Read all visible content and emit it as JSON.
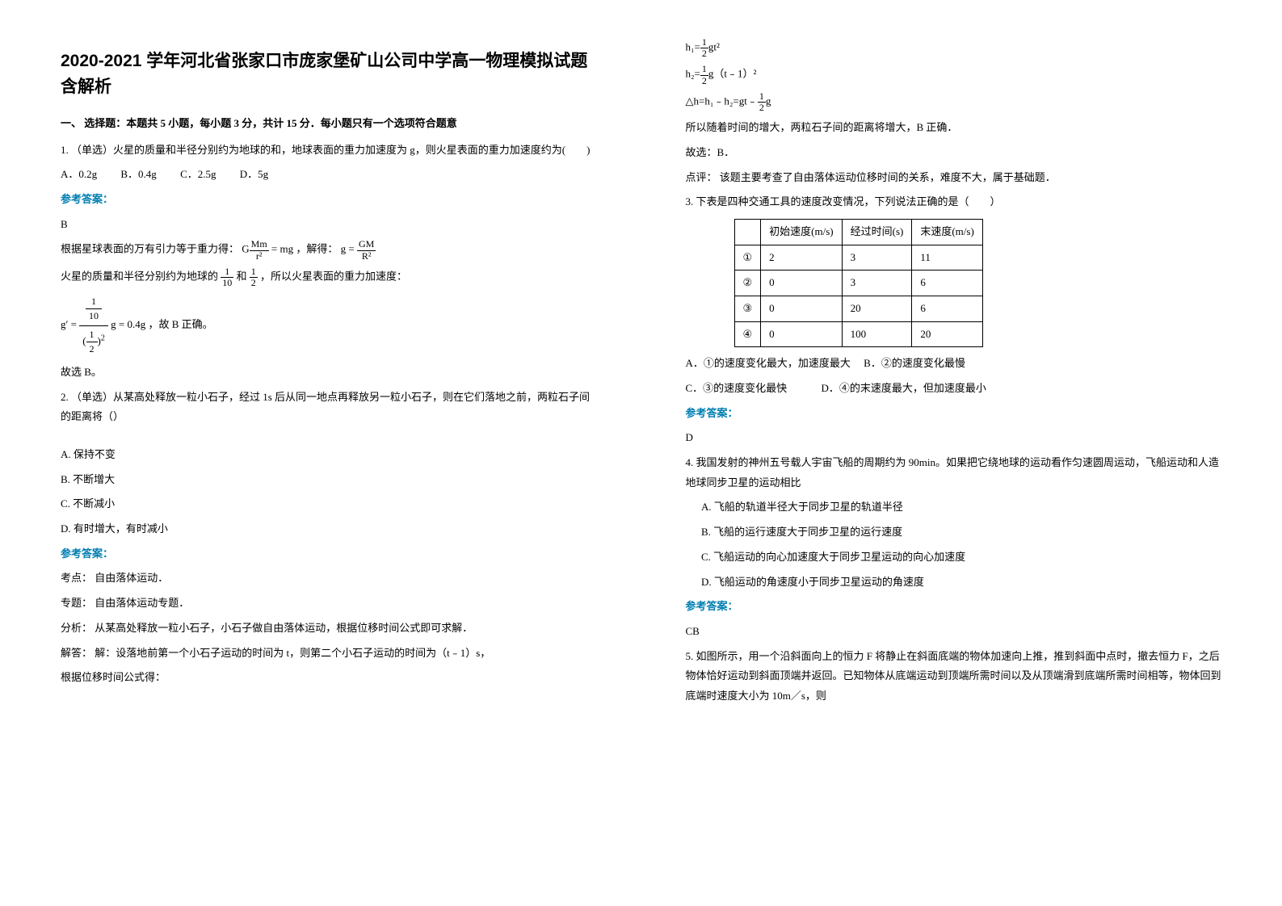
{
  "title": "2020-2021 学年河北省张家口市庞家堡矿山公司中学高一物理模拟试题含解析",
  "section1": {
    "head": "一、 选择题：本题共 5 小题，每小题 3 分，共计 15 分．每小题只有一个选项符合题意"
  },
  "q1": {
    "stem": "1. （单选）火星的质量和半径分别约为地球的和，地球表面的重力加速度为 g，则火星表面的重力加速度约为(　　)",
    "optA": "A．0.2g",
    "optB": "B．0.4g",
    "optC": "C．2.5g",
    "optD": "D．5g",
    "ansLabel": "参考答案：",
    "ans": "B",
    "exp1a": "根据星球表面的万有引力等于重力得：",
    "exp1b": "，解得：",
    "exp2a": "火星的质量和半径分别约为地球的",
    "exp2b": "和",
    "exp2c": "，所以火星表面的重力加速度：",
    "exp3": "，故 B 正确。",
    "exp4": "故选 B。",
    "formula1_lhs_G": "G",
    "formula1_lhs_num": "Mm",
    "formula1_lhs_den": "r²",
    "formula1_mid": "= mg",
    "formula2_lhs": "g =",
    "formula2_num": "GM",
    "formula2_den": "R²",
    "frac_1_10_num": "1",
    "frac_1_10_den": "10",
    "frac_1_2_num": "1",
    "frac_1_2_den": "2",
    "formula3_lhs": "g′ =",
    "formula3_result": "g = 0.4g"
  },
  "q2": {
    "stem": "2. （单选）从某高处释放一粒小石子，经过 1s 后从同一地点再释放另一粒小石子，则在它们落地之前，两粒石子间的距离将（）",
    "optA": "A. 保持不变",
    "optB": "B. 不断增大",
    "optC": "C. 不断减小",
    "optD": "D. 有时增大，有时减小",
    "ansLabel": "参考答案：",
    "kp_label": "考点：",
    "kp": "自由落体运动．",
    "zt_label": "专题：",
    "zt": "自由落体运动专题．",
    "fx_label": "分析：",
    "fx": "从某高处释放一粒小石子，小石子做自由落体运动，根据位移时间公式即可求解．",
    "jd_label": "解答：",
    "jd": "解：设落地前第一个小石子运动的时间为 t，则第二个小石子运动的时间为（t﹣1）s，",
    "jd2": "根据位移时间公式得：",
    "h1_lhs": "h₁=",
    "h1_rhs": "gt²",
    "h2_lhs": "h₂=",
    "h2_rhs": "g（t﹣1）²",
    "dh_lhs": "△h=h₁﹣h₂=gt﹣",
    "dh_rhs": "g",
    "concl": "所以随着时间的增大，两粒石子间的距离将增大，B 正确．",
    "pick": "故选：B．",
    "dp_label": "点评：",
    "dp": "该题主要考查了自由落体运动位移时间的关系，难度不大，属于基础题．",
    "half_num": "1",
    "half_den": "2"
  },
  "q3": {
    "stem": "3. 下表是四种交通工具的速度改变情况，下列说法正确的是（　　）",
    "table": {
      "headers": [
        "",
        "初始速度(m/s)",
        "经过时间(s)",
        "末速度(m/s)"
      ],
      "rows": [
        [
          "①",
          "2",
          "3",
          "11"
        ],
        [
          "②",
          "0",
          "3",
          "6"
        ],
        [
          "③",
          "0",
          "20",
          "6"
        ],
        [
          "④",
          "0",
          "100",
          "20"
        ]
      ]
    },
    "optA": "A．①的速度变化最大，加速度最大",
    "optB": "B．②的速度变化最慢",
    "optC": "C．③的速度变化最快",
    "optD": "D．④的末速度最大，但加速度最小",
    "ansLabel": "参考答案：",
    "ans": "D"
  },
  "q4": {
    "stem": "4. 我国发射的神州五号载人宇宙飞船的周期约为 90min。如果把它绕地球的运动看作匀速圆周运动，飞船运动和人造地球同步卫星的运动相比",
    "optA": "A. 飞船的轨道半径大于同步卫星的轨道半径",
    "optB": "B. 飞船的运行速度大于同步卫星的运行速度",
    "optC": "C. 飞船运动的向心加速度大于同步卫星运动的向心加速度",
    "optD": "D. 飞船运动的角速度小于同步卫星运动的角速度",
    "ansLabel": "参考答案：",
    "ans": "CB"
  },
  "q5": {
    "stem": "5. 如图所示，用一个沿斜面向上的恒力 F 将静止在斜面底端的物体加速向上推，推到斜面中点时，撤去恒力 F，之后物体恰好运动到斜面顶端并返回。已知物体从底端运动到顶端所需时间以及从顶端滑到底端所需时间相等，物体回到底端时速度大小为 10m／s，则"
  }
}
